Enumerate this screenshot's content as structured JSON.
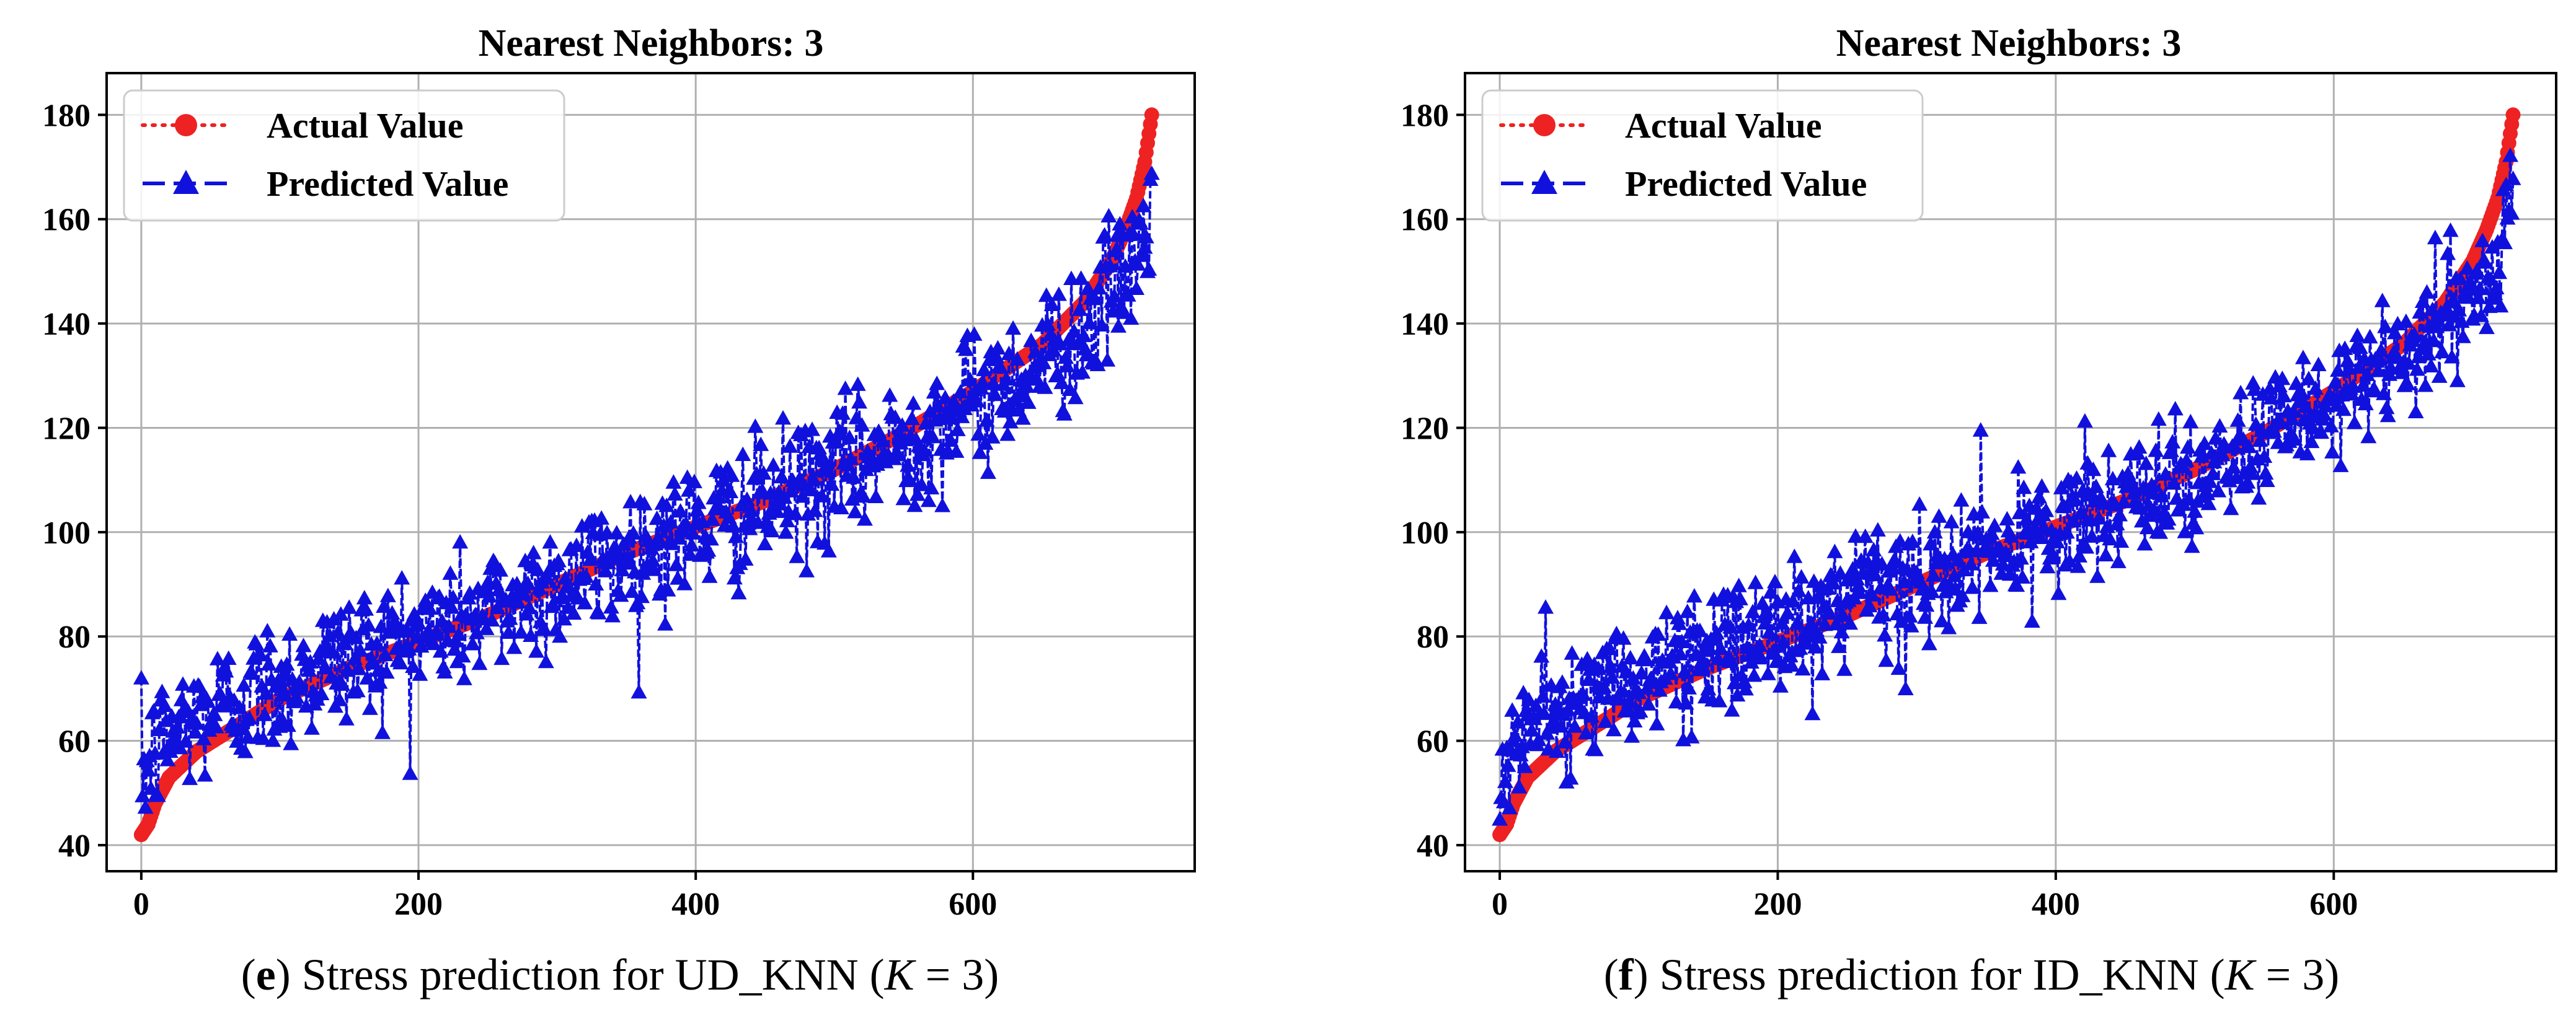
{
  "colors": {
    "actual": "#ee2222",
    "predicted": "#1111dd",
    "grid": "#b0b0b0",
    "frame": "#000000"
  },
  "chart_data": [
    {
      "type": "line",
      "title": "Nearest Neighbors: 3",
      "xlabel": "",
      "ylabel": "",
      "xlim": [
        -25,
        760
      ],
      "ylim": [
        35,
        188
      ],
      "xticks": [
        0,
        200,
        400,
        600
      ],
      "yticks": [
        40,
        60,
        80,
        100,
        120,
        140,
        160,
        180
      ],
      "grid": true,
      "legend_position": "top-left",
      "n_points": 730,
      "series": [
        {
          "name": "Actual Value",
          "marker": "circle",
          "linestyle": "dotted",
          "anchors_x": [
            0,
            5,
            10,
            20,
            40,
            70,
            100,
            150,
            200,
            250,
            300,
            350,
            400,
            450,
            500,
            550,
            600,
            650,
            680,
            700,
            710,
            718,
            724,
            729
          ],
          "anchors_y": [
            42,
            44,
            48,
            53,
            58,
            63,
            68,
            74,
            79,
            84,
            90,
            96,
            101,
            106,
            112,
            119,
            127,
            136,
            144,
            152,
            158,
            164,
            171,
            180
          ]
        },
        {
          "name": "Predicted Value",
          "marker": "triangle",
          "linestyle": "dashed",
          "mean_offset_anchors_x": [
            0,
            20,
            100,
            300,
            500,
            650,
            700,
            729
          ],
          "mean_offset_anchors_y": [
            12,
            8,
            3,
            0,
            -1,
            -3,
            -6,
            -15
          ],
          "noise_std": 6.5
        }
      ],
      "caption": {
        "letter": "e",
        "prefix": "(",
        "text": ") Stress prediction for UD_KNN (",
        "k_symbol": "K",
        "k_value": " = 3)"
      }
    },
    {
      "type": "line",
      "title": "Nearest Neighbors: 3",
      "xlabel": "",
      "ylabel": "",
      "xlim": [
        -25,
        760
      ],
      "ylim": [
        35,
        188
      ],
      "xticks": [
        0,
        200,
        400,
        600
      ],
      "yticks": [
        40,
        60,
        80,
        100,
        120,
        140,
        160,
        180
      ],
      "grid": true,
      "legend_position": "top-left",
      "n_points": 730,
      "series": [
        {
          "name": "Actual Value",
          "marker": "circle",
          "linestyle": "dotted",
          "anchors_x": [
            0,
            5,
            10,
            20,
            40,
            70,
            100,
            150,
            200,
            250,
            300,
            350,
            400,
            450,
            500,
            550,
            600,
            650,
            680,
            700,
            710,
            718,
            724,
            729
          ],
          "anchors_y": [
            42,
            44,
            48,
            53,
            58,
            63,
            68,
            74,
            79,
            84,
            90,
            96,
            101,
            106,
            112,
            119,
            127,
            136,
            144,
            152,
            158,
            164,
            171,
            180
          ]
        },
        {
          "name": "Predicted Value",
          "marker": "triangle",
          "linestyle": "dashed",
          "mean_offset_anchors_x": [
            0,
            20,
            100,
            300,
            500,
            650,
            700,
            729
          ],
          "mean_offset_anchors_y": [
            12,
            9,
            4,
            0,
            -1,
            -3,
            -6,
            -16
          ],
          "noise_std": 6.0
        }
      ],
      "caption": {
        "letter": "f",
        "prefix": "(",
        "text": ") Stress prediction for ID_KNN (",
        "k_symbol": "K",
        "k_value": " = 3)"
      }
    }
  ]
}
